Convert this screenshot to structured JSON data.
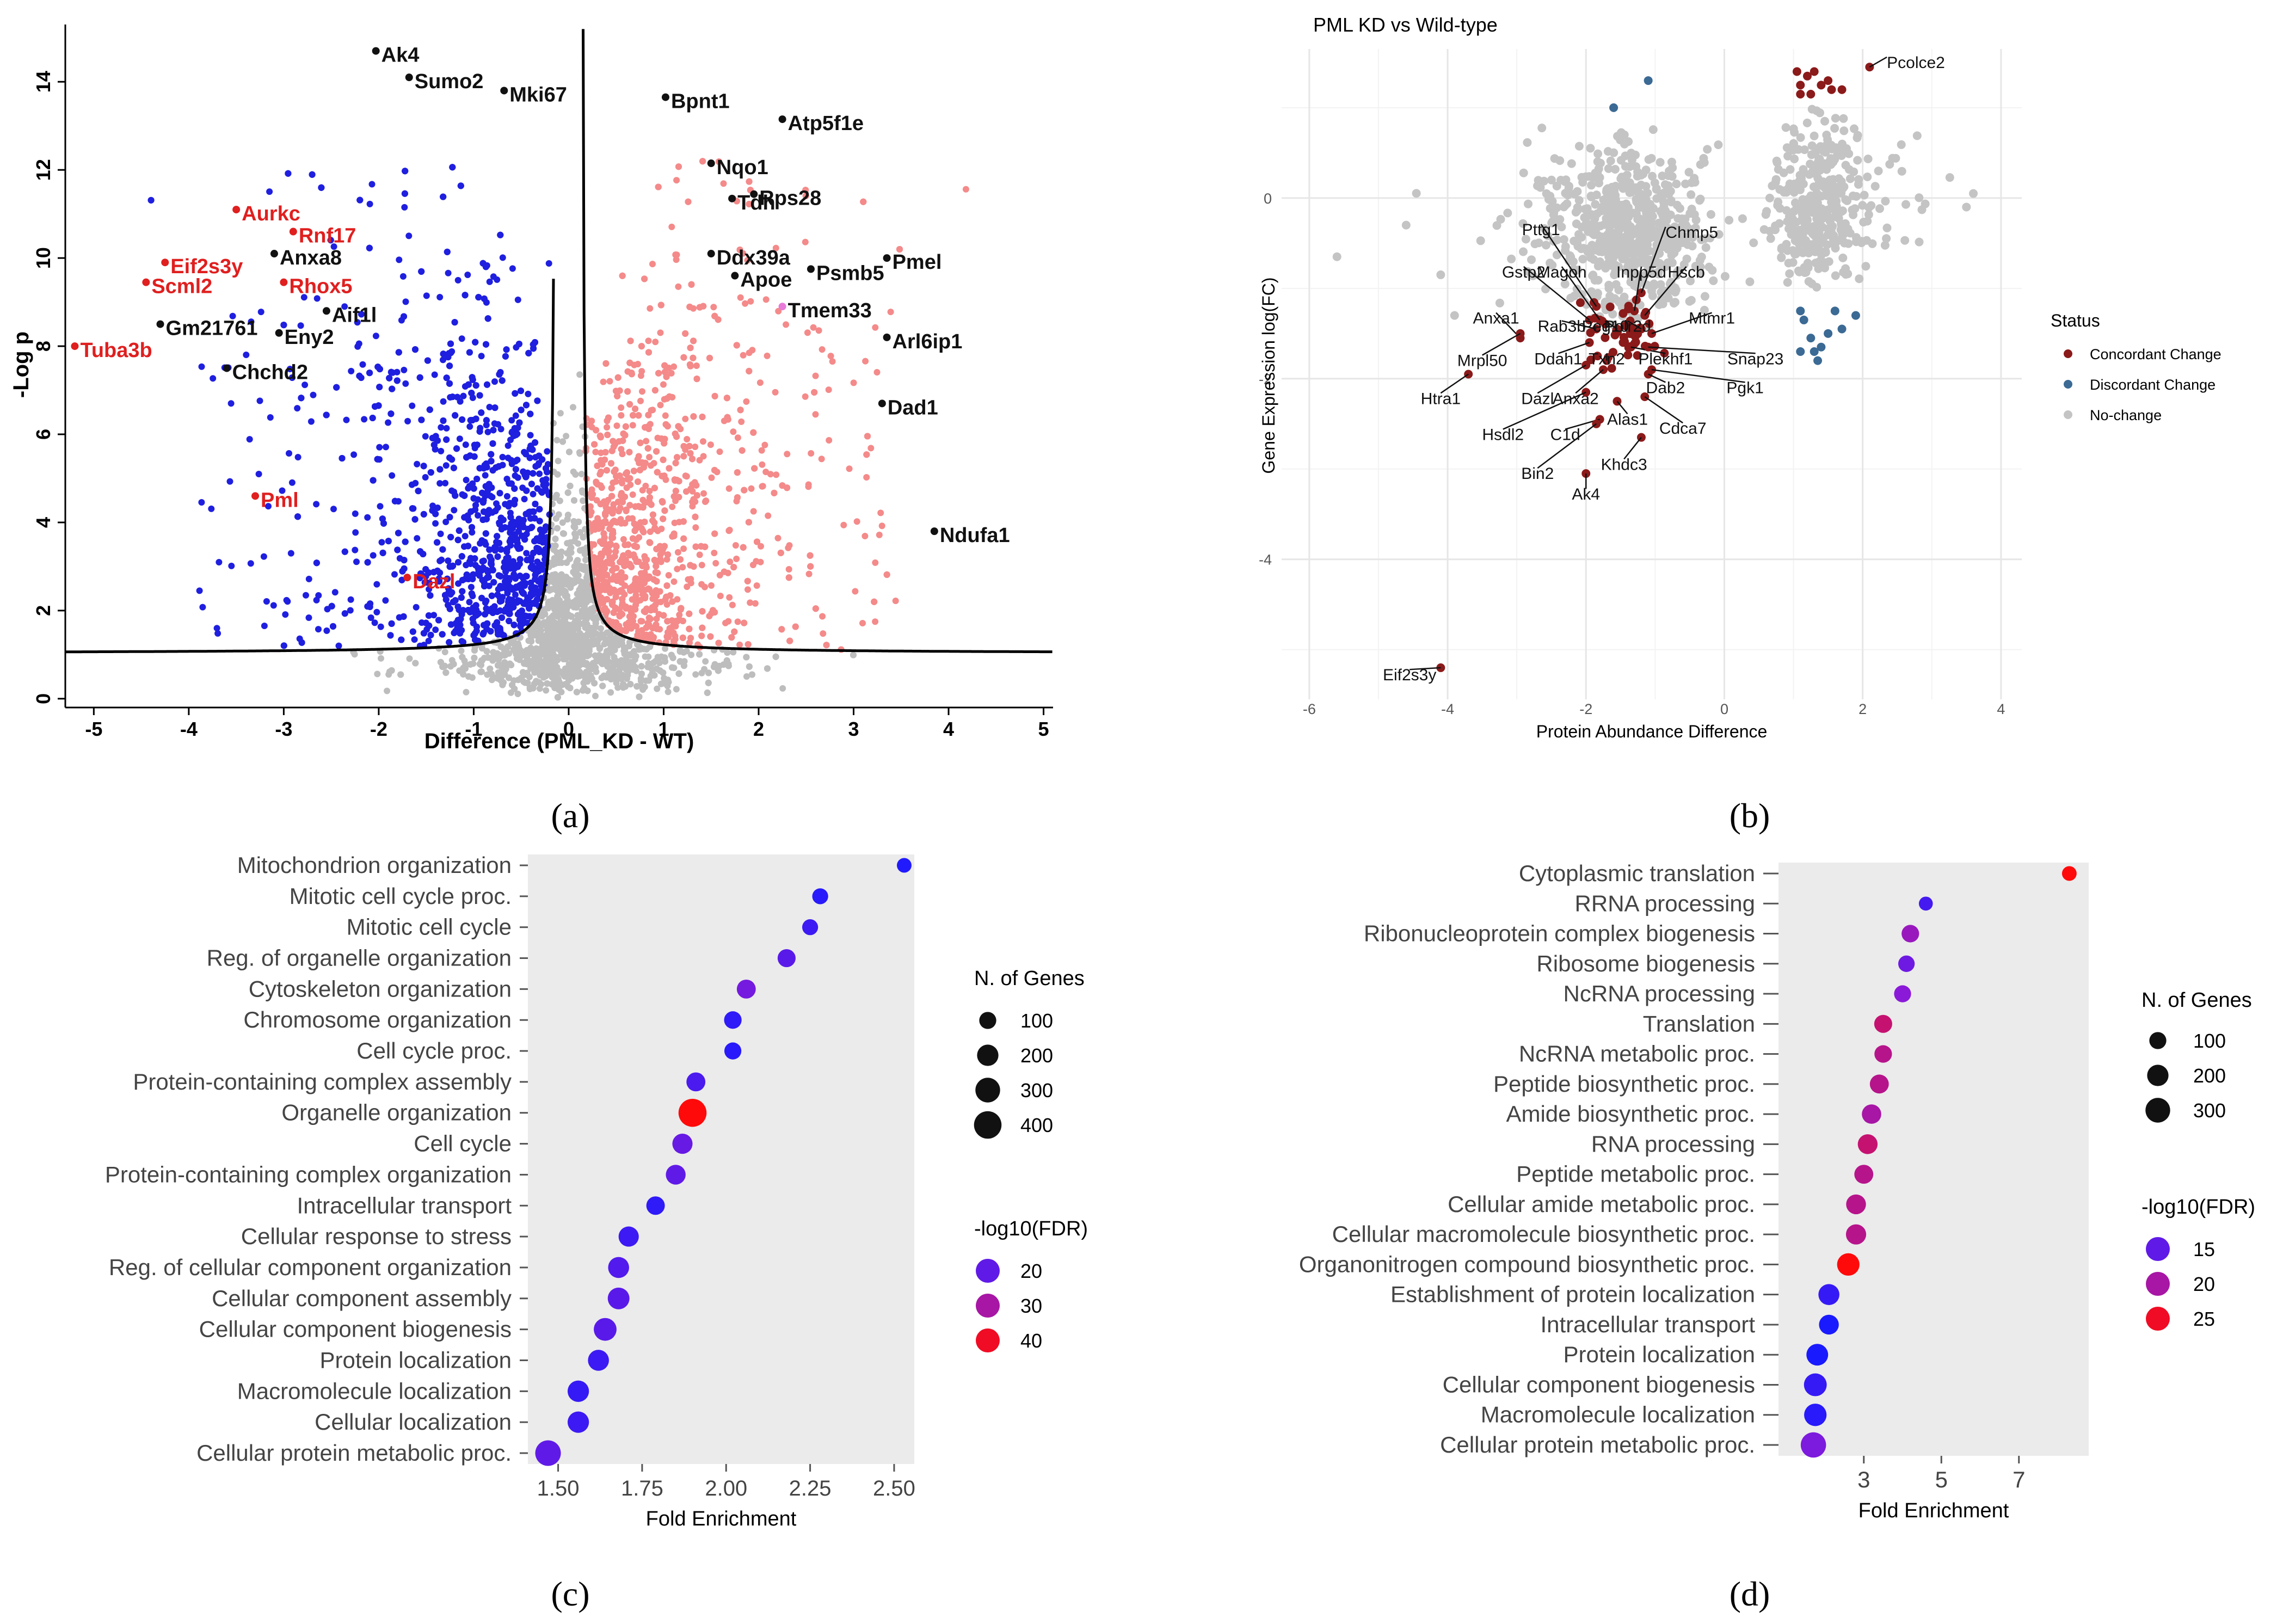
{
  "captions": [
    "(a)",
    "(b)",
    "(c)",
    "(d)"
  ],
  "chart_data": [
    {
      "id": "a",
      "type": "scatter",
      "title": "",
      "xlabel": "Difference (PML_KD - WT)",
      "ylabel": "-Log p",
      "xlim": [
        -5.3,
        5.1
      ],
      "ylim": [
        -0.2,
        15.3
      ],
      "xticks": [
        -5,
        -4,
        -3,
        -2,
        -1,
        0,
        1,
        2,
        3,
        4,
        5
      ],
      "yticks": [
        0,
        2,
        4,
        6,
        8,
        10,
        12,
        14
      ],
      "grid": false,
      "colors": {
        "down": "#1f1fe0",
        "up": "#f48a8a",
        "ns": "#bdbdbd",
        "label_black": "#111111",
        "label_red": "#e01f1f",
        "pink": "#e87ad8"
      },
      "threshold_curve": {
        "s0": 0.14,
        "c": 0.17,
        "floor": 1.03
      },
      "labeled_points": [
        {
          "label": "Ak4",
          "x": -2.03,
          "y": 14.7,
          "color": "black"
        },
        {
          "label": "Sumo2",
          "x": -1.68,
          "y": 14.1,
          "color": "black"
        },
        {
          "label": "Mki67",
          "x": -0.68,
          "y": 13.8,
          "color": "black"
        },
        {
          "label": "Bpnt1",
          "x": 1.02,
          "y": 13.65,
          "color": "black"
        },
        {
          "label": "Atp5f1e",
          "x": 2.25,
          "y": 13.15,
          "color": "black"
        },
        {
          "label": "Nqo1",
          "x": 1.5,
          "y": 12.15,
          "color": "black"
        },
        {
          "label": "Tdh",
          "x": 1.72,
          "y": 11.35,
          "color": "black"
        },
        {
          "label": "Rps28",
          "x": 1.95,
          "y": 11.45,
          "color": "black"
        },
        {
          "label": "Aurkc",
          "x": -3.5,
          "y": 11.1,
          "color": "red"
        },
        {
          "label": "Rnf17",
          "x": -2.9,
          "y": 10.6,
          "color": "red"
        },
        {
          "label": "Anxa8",
          "x": -3.1,
          "y": 10.1,
          "color": "black"
        },
        {
          "label": "Ddx39a",
          "x": 1.5,
          "y": 10.1,
          "color": "black"
        },
        {
          "label": "Pmel",
          "x": 3.35,
          "y": 10.0,
          "color": "black"
        },
        {
          "label": "Eif2s3y",
          "x": -4.25,
          "y": 9.9,
          "color": "red"
        },
        {
          "label": "Psmb5",
          "x": 2.55,
          "y": 9.75,
          "color": "black"
        },
        {
          "label": "Apoe",
          "x": 1.75,
          "y": 9.6,
          "color": "black"
        },
        {
          "label": "Scml2",
          "x": -4.45,
          "y": 9.45,
          "color": "red"
        },
        {
          "label": "Rhox5",
          "x": -3.0,
          "y": 9.45,
          "color": "red"
        },
        {
          "label": "Tmem33",
          "x": 2.25,
          "y": 8.9,
          "color": "pink"
        },
        {
          "label": "Aif1l",
          "x": -2.55,
          "y": 8.8,
          "color": "black"
        },
        {
          "label": "Gm21761",
          "x": -4.3,
          "y": 8.5,
          "color": "black"
        },
        {
          "label": "Eny2",
          "x": -3.05,
          "y": 8.3,
          "color": "black"
        },
        {
          "label": "Arl6ip1",
          "x": 3.35,
          "y": 8.2,
          "color": "black"
        },
        {
          "label": "Tuba3b",
          "x": -5.2,
          "y": 8.0,
          "color": "red"
        },
        {
          "label": "Chchd2",
          "x": -3.6,
          "y": 7.5,
          "color": "black"
        },
        {
          "label": "Dad1",
          "x": 3.3,
          "y": 6.7,
          "color": "black"
        },
        {
          "label": "Pml",
          "x": -3.3,
          "y": 4.6,
          "color": "red"
        },
        {
          "label": "Ndufa1",
          "x": 3.85,
          "y": 3.8,
          "color": "black"
        },
        {
          "label": "Dazl",
          "x": -1.7,
          "y": 2.75,
          "color": "red"
        }
      ]
    },
    {
      "id": "b",
      "type": "scatter",
      "title": "PML KD vs Wild-type",
      "xlabel": "Protein Abundance Difference",
      "ylabel": "Gene Expression log(FC)",
      "xlim": [
        -6.4,
        4.3
      ],
      "ylim": [
        -5.55,
        1.65
      ],
      "xticks": [
        -6,
        -4,
        -2,
        0,
        2,
        4
      ],
      "yticks": [
        0,
        -2,
        -4
      ],
      "grid": true,
      "legend": {
        "title": "Status",
        "entries": [
          "Concordant Change",
          "Discordant Change",
          "No-change"
        ],
        "position": "right"
      },
      "colors": {
        "concordant": "#8b1a1a",
        "discordant": "#3b6a94",
        "nochange": "#c4c4c4"
      },
      "labeled_points": [
        {
          "label": "Pcolce2",
          "x": 2.1,
          "y": 1.45
        },
        {
          "label": "Eif2s3y",
          "x": -4.1,
          "y": -5.2
        },
        {
          "label": "Ak4",
          "x": -2.0,
          "y": -3.05
        },
        {
          "label": "Pttg1",
          "x": -1.85,
          "y": -1.2
        },
        {
          "label": "Chmp5",
          "x": -1.2,
          "y": -1.05
        },
        {
          "label": "Gstp2",
          "x": -1.95,
          "y": -1.35
        },
        {
          "label": "Magoh",
          "x": -1.8,
          "y": -1.35
        },
        {
          "label": "Inpp5d",
          "x": -1.3,
          "y": -1.25
        },
        {
          "label": "Hscb",
          "x": -1.15,
          "y": -1.3
        },
        {
          "label": "Rab3b",
          "x": -1.85,
          "y": -1.45
        },
        {
          "label": "Peg10",
          "x": -1.55,
          "y": -1.45
        },
        {
          "label": "Polr2d",
          "x": -1.2,
          "y": -1.45
        },
        {
          "label": "Mtmr1",
          "x": -1.05,
          "y": -1.5
        },
        {
          "label": "Anxa1",
          "x": -2.95,
          "y": -1.55
        },
        {
          "label": "Ddah1",
          "x": -1.95,
          "y": -1.6
        },
        {
          "label": "Plekhf1",
          "x": -1.35,
          "y": -1.65
        },
        {
          "label": "Snap23",
          "x": -1.1,
          "y": -1.65
        },
        {
          "label": "Mrpl50",
          "x": -2.95,
          "y": -1.5
        },
        {
          "label": "Txn2",
          "x": -1.7,
          "y": -1.8
        },
        {
          "label": "Dab2",
          "x": -1.1,
          "y": -1.95
        },
        {
          "label": "Pgk1",
          "x": -1.05,
          "y": -1.9
        },
        {
          "label": "Htra1",
          "x": -3.7,
          "y": -1.95
        },
        {
          "label": "Dazl",
          "x": -2.0,
          "y": -1.85
        },
        {
          "label": "Anxa2",
          "x": -1.75,
          "y": -1.9
        },
        {
          "label": "Cdca7",
          "x": -1.15,
          "y": -2.2
        },
        {
          "label": "Hsdl2",
          "x": -2.0,
          "y": -2.15
        },
        {
          "label": "Alas1",
          "x": -1.55,
          "y": -2.25
        },
        {
          "label": "C1d",
          "x": -1.8,
          "y": -2.45
        },
        {
          "label": "Khdc3",
          "x": -1.2,
          "y": -2.65
        },
        {
          "label": "Bin2",
          "x": -1.85,
          "y": -2.5
        }
      ]
    },
    {
      "id": "c",
      "type": "scatter",
      "title": "",
      "xlabel": "Fold Enrichment",
      "ylabel": "",
      "xlim": [
        1.41,
        2.56
      ],
      "xticks": [
        "1.50",
        "1.75",
        "2.00",
        "2.25",
        "2.50"
      ],
      "xtick_values": [
        1.5,
        1.75,
        2.0,
        2.25,
        2.5
      ],
      "categories": [
        "Mitochondrion organization",
        "Mitotic cell cycle proc.",
        "Mitotic cell cycle",
        "Reg. of organelle organization",
        "Cytoskeleton organization",
        "Chromosome organization",
        "Cell cycle proc.",
        "Protein-containing complex assembly",
        "Organelle organization",
        "Cell cycle",
        "Protein-containing complex organization",
        "Intracellular transport",
        "Cellular response to stress",
        "Reg. of cellular component organization",
        "Cellular component assembly",
        "Cellular component biogenesis",
        "Protein localization",
        "Macromolecule localization",
        "Cellular localization",
        "Cellular protein metabolic proc."
      ],
      "fold_enrichment": [
        2.53,
        2.28,
        2.25,
        2.18,
        2.06,
        2.02,
        2.02,
        1.91,
        1.9,
        1.87,
        1.85,
        1.79,
        1.71,
        1.68,
        1.68,
        1.64,
        1.62,
        1.56,
        1.56,
        1.47
      ],
      "n_genes": [
        60,
        80,
        80,
        120,
        140,
        110,
        100,
        140,
        420,
        170,
        160,
        130,
        170,
        190,
        210,
        240,
        190,
        200,
        200,
        330
      ],
      "neg_log10_fdr": [
        11,
        12,
        15,
        19,
        23,
        13,
        12,
        17,
        42,
        21,
        20,
        13,
        15,
        18,
        19,
        19,
        15,
        14,
        15,
        20
      ],
      "legend_size": {
        "title": "N. of Genes",
        "entries": [
          "100",
          "200",
          "300",
          "400"
        ],
        "values": [
          100,
          200,
          300,
          400
        ]
      },
      "legend_color": {
        "title": "-log10(FDR)",
        "entries": [
          "20",
          "30",
          "40"
        ],
        "values": [
          20,
          30,
          40
        ]
      },
      "color_scale": {
        "low": "#1a1aff",
        "mid": "#c80a8a",
        "high": "#ff0a0a",
        "range": [
          10,
          42
        ]
      }
    },
    {
      "id": "d",
      "type": "scatter",
      "title": "",
      "xlabel": "Fold Enrichment",
      "ylabel": "",
      "xlim": [
        0.8,
        8.8
      ],
      "xticks": [
        "3",
        "5",
        "7"
      ],
      "xtick_values": [
        3,
        5,
        7
      ],
      "categories": [
        "Cytoplasmic translation",
        "RRNA processing",
        "Ribonucleoprotein complex biogenesis",
        "Ribosome biogenesis",
        "NcRNA processing",
        "Translation",
        "NcRNA metabolic proc.",
        "Peptide biosynthetic proc.",
        "Amide biosynthetic proc.",
        "RNA processing",
        "Peptide metabolic proc.",
        "Cellular amide metabolic proc.",
        "Cellular macromolecule biosynthetic proc.",
        "Organonitrogen compound biosynthetic proc.",
        "Establishment of protein localization",
        "Intracellular transport",
        "Protein localization",
        "Cellular component biogenesis",
        "Macromolecule localization",
        "Cellular protein metabolic proc."
      ],
      "fold_enrichment": [
        8.3,
        4.6,
        4.2,
        4.1,
        4.0,
        3.5,
        3.5,
        3.4,
        3.2,
        3.1,
        3.0,
        2.8,
        2.8,
        2.6,
        2.1,
        2.1,
        1.8,
        1.75,
        1.75,
        1.7
      ],
      "n_genes": [
        60,
        50,
        110,
        90,
        100,
        120,
        110,
        140,
        150,
        160,
        140,
        160,
        170,
        230,
        190,
        160,
        210,
        240,
        230,
        320
      ],
      "neg_log10_fdr": [
        26,
        13,
        19,
        16,
        18,
        22,
        21,
        21,
        20,
        22,
        21,
        21,
        21,
        26,
        12,
        10,
        10,
        12,
        11,
        17
      ],
      "legend_size": {
        "title": "N. of Genes",
        "entries": [
          "100",
          "200",
          "300"
        ],
        "values": [
          100,
          200,
          300
        ]
      },
      "legend_color": {
        "title": "-log10(FDR)",
        "entries": [
          "15",
          "20",
          "25"
        ],
        "values": [
          15,
          20,
          25
        ]
      },
      "color_scale": {
        "low": "#1a1aff",
        "mid": "#c80a8a",
        "high": "#ff0a0a",
        "range": [
          10,
          26
        ]
      }
    }
  ]
}
